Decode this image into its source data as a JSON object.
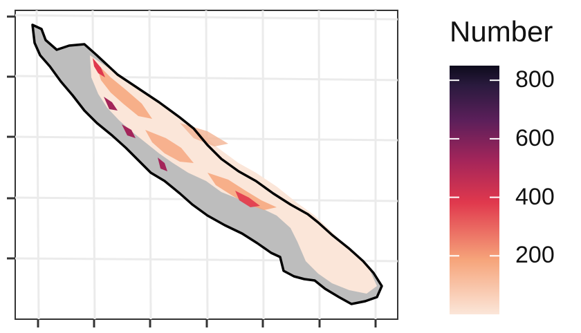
{
  "legend": {
    "title": "Number",
    "ticks": [
      {
        "value": 800,
        "label": "800"
      },
      {
        "value": 600,
        "label": "600"
      },
      {
        "value": 400,
        "label": "400"
      },
      {
        "value": 200,
        "label": "200"
      }
    ],
    "range": [
      0,
      850
    ],
    "colors": [
      "#fbe6d9",
      "#f6a47a",
      "#e34d4d",
      "#a3255a",
      "#5b1f5a",
      "#1c1530",
      "#0d0b1c"
    ]
  },
  "map": {
    "panel_background": "#ffffff",
    "grid_color": "#ebebeb",
    "land_color": "#bdbdbd",
    "coastline_color": "#000000",
    "x_ticks_count": 7,
    "y_ticks_count": 5
  }
}
